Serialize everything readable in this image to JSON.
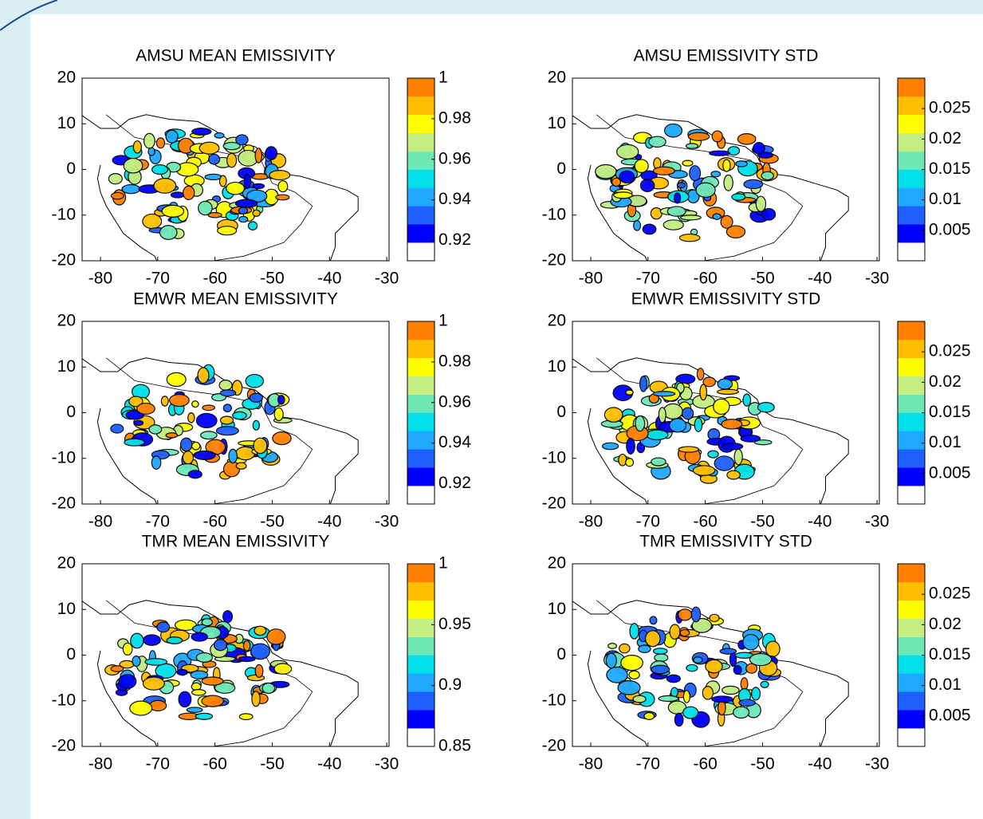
{
  "chart_data": [
    {
      "type": "contour",
      "title": "AMSU MEAN EMISSIVITY",
      "xlim": [
        -83.2,
        -29.6
      ],
      "xticks": [
        -80,
        -70,
        -60,
        -50,
        -40,
        -30
      ],
      "ylim": [
        -20,
        20
      ],
      "yticks": [
        -20,
        -10,
        0,
        10,
        20
      ],
      "colorbar": {
        "lim": [
          0.91,
          1
        ],
        "ticks": [
          0.92,
          0.94,
          0.96,
          0.98,
          1
        ],
        "colors": [
          "#ffffff",
          "#0000ff",
          "#1f5fff",
          "#1fa8ff",
          "#00e0e8",
          "#6fe8b8",
          "#c4ee80",
          "#ffff00",
          "#ffbf00",
          "#ff8000"
        ]
      }
    },
    {
      "type": "contour",
      "title": "AMSU EMISSIVITY STD",
      "xlim": [
        -83.2,
        -29.6
      ],
      "xticks": [
        -80,
        -70,
        -60,
        -50,
        -40,
        -30
      ],
      "ylim": [
        -20,
        20
      ],
      "yticks": [
        -20,
        -10,
        0,
        10,
        20
      ],
      "colorbar": {
        "lim": [
          0,
          0.03
        ],
        "ticks": [
          0.005,
          0.01,
          0.015,
          0.02,
          0.025
        ],
        "colors": [
          "#ffffff",
          "#0000ff",
          "#1f5fff",
          "#1fa8ff",
          "#00e0e8",
          "#6fe8b8",
          "#c4ee80",
          "#ffff00",
          "#ffbf00",
          "#ff8000"
        ]
      }
    },
    {
      "type": "contour",
      "title": "EMWR MEAN EMISSIVITY",
      "xlim": [
        -83.2,
        -29.6
      ],
      "xticks": [
        -80,
        -70,
        -60,
        -50,
        -40,
        -30
      ],
      "ylim": [
        -20,
        20
      ],
      "yticks": [
        -20,
        -10,
        0,
        10,
        20
      ],
      "colorbar": {
        "lim": [
          0.91,
          1
        ],
        "ticks": [
          0.92,
          0.94,
          0.96,
          0.98,
          1
        ],
        "colors": [
          "#ffffff",
          "#0000ff",
          "#1f5fff",
          "#1fa8ff",
          "#00e0e8",
          "#6fe8b8",
          "#c4ee80",
          "#ffff00",
          "#ffbf00",
          "#ff8000"
        ]
      }
    },
    {
      "type": "contour",
      "title": "EMWR EMISSIVITY STD",
      "xlim": [
        -83.2,
        -29.6
      ],
      "xticks": [
        -80,
        -70,
        -60,
        -50,
        -40,
        -30
      ],
      "ylim": [
        -20,
        20
      ],
      "yticks": [
        -20,
        -10,
        0,
        10,
        20
      ],
      "colorbar": {
        "lim": [
          0,
          0.03
        ],
        "ticks": [
          0.005,
          0.01,
          0.015,
          0.02,
          0.025
        ],
        "colors": [
          "#ffffff",
          "#0000ff",
          "#1f5fff",
          "#1fa8ff",
          "#00e0e8",
          "#6fe8b8",
          "#c4ee80",
          "#ffff00",
          "#ffbf00",
          "#ff8000"
        ]
      }
    },
    {
      "type": "contour",
      "title": "TMR MEAN EMISSIVITY",
      "xlim": [
        -83.2,
        -29.6
      ],
      "xticks": [
        -80,
        -70,
        -60,
        -50,
        -40,
        -30
      ],
      "ylim": [
        -20,
        20
      ],
      "yticks": [
        -20,
        -10,
        0,
        10,
        20
      ],
      "colorbar": {
        "lim": [
          0.85,
          1
        ],
        "ticks": [
          0.85,
          0.9,
          0.95,
          1
        ],
        "colors": [
          "#ffffff",
          "#0000ff",
          "#1f5fff",
          "#1fa8ff",
          "#00e0e8",
          "#6fe8b8",
          "#c4ee80",
          "#ffff00",
          "#ffbf00",
          "#ff8000"
        ]
      }
    },
    {
      "type": "contour",
      "title": "TMR EMISSIVITY STD",
      "xlim": [
        -83.2,
        -29.6
      ],
      "xticks": [
        -80,
        -70,
        -60,
        -50,
        -40,
        -30
      ],
      "ylim": [
        -20,
        20
      ],
      "yticks": [
        -20,
        -10,
        0,
        10,
        20
      ],
      "colorbar": {
        "lim": [
          0,
          0.03
        ],
        "ticks": [
          0.005,
          0.01,
          0.015,
          0.02,
          0.025
        ],
        "colors": [
          "#ffffff",
          "#0000ff",
          "#1f5fff",
          "#1fa8ff",
          "#00e0e8",
          "#6fe8b8",
          "#c4ee80",
          "#ffff00",
          "#ffbf00",
          "#ff8000"
        ]
      }
    }
  ]
}
